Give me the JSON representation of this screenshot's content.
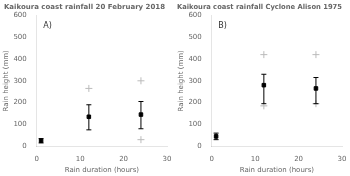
{
  "chart_data": [
    {
      "type": "scatter",
      "title": "Kaikoura coast rainfall 20 February 2018",
      "xlabel": "Rain duration (hours)",
      "ylabel": "Rain height (mm)",
      "annotation": "A)",
      "xlim": [
        0,
        30
      ],
      "xticks": [
        0,
        10,
        20,
        30
      ],
      "ylim": [
        0,
        600
      ],
      "yticks": [
        0,
        100,
        200,
        300,
        400,
        500,
        600
      ],
      "grid": false,
      "series": [
        {
          "x": [
            12,
            24,
            24
          ],
          "values": [
            265,
            300,
            30
          ],
          "color": "#bbbbbb",
          "marker": "cross"
        },
        {
          "x": [
            1,
            12,
            24
          ],
          "values": [
            25,
            135,
            145
          ],
          "color": "#000000",
          "marker": "square",
          "yerr_low": [
            10,
            60,
            65
          ],
          "yerr_high": [
            10,
            55,
            60
          ]
        }
      ]
    },
    {
      "type": "scatter",
      "title": "Kaikoura coast rainfall Cyclone Alison 1975",
      "xlabel": "Rain duration (hours)",
      "ylabel": "Rain height (mm)",
      "annotation": "B)",
      "xlim": [
        0,
        30
      ],
      "xticks": [
        0,
        10,
        20,
        30
      ],
      "ylim": [
        0,
        600
      ],
      "yticks": [
        0,
        100,
        200,
        300,
        400,
        500,
        600
      ],
      "grid": false,
      "series": [
        {
          "x": [
            12,
            12,
            24,
            24
          ],
          "values": [
            420,
            185,
            420,
            195
          ],
          "color": "#bbbbbb",
          "marker": "cross"
        },
        {
          "x": [
            1,
            12,
            24
          ],
          "values": [
            45,
            280,
            265
          ],
          "color": "#000000",
          "marker": "square",
          "yerr_low": [
            15,
            85,
            70
          ],
          "yerr_high": [
            15,
            50,
            50
          ]
        }
      ]
    }
  ]
}
